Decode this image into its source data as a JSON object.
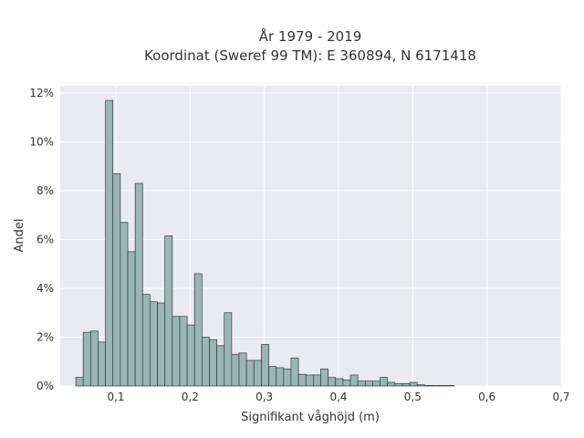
{
  "chart_data": {
    "type": "bar",
    "title": "År 1979 - 2019",
    "subtitle": "Koordinat (Sweref 99 TM): E 360894, N 6171418",
    "xlabel": "Signifikant våghöjd (m)",
    "ylabel": "Andel",
    "xlim": [
      0.025,
      0.7
    ],
    "ylim": [
      0,
      12.3
    ],
    "x_ticks": [
      0.1,
      0.2,
      0.3,
      0.4,
      0.5,
      0.6,
      0.7
    ],
    "x_tick_labels": [
      "0,1",
      "0,2",
      "0,3",
      "0,4",
      "0,5",
      "0,6",
      "0,7"
    ],
    "y_ticks": [
      0,
      2,
      4,
      6,
      8,
      10,
      12
    ],
    "y_tick_labels": [
      "0%",
      "2%",
      "4%",
      "6%",
      "8%",
      "10%",
      "12%"
    ],
    "bin_start": 0.046,
    "bin_width": 0.01,
    "values": [
      0.35,
      2.2,
      2.25,
      1.8,
      11.7,
      8.7,
      6.7,
      5.5,
      8.3,
      3.75,
      3.45,
      3.4,
      6.15,
      2.85,
      2.85,
      2.5,
      4.6,
      2.0,
      1.9,
      1.65,
      3.0,
      1.3,
      1.35,
      1.05,
      1.05,
      1.7,
      0.8,
      0.75,
      0.7,
      1.15,
      0.48,
      0.45,
      0.45,
      0.7,
      0.35,
      0.3,
      0.25,
      0.45,
      0.2,
      0.2,
      0.2,
      0.35,
      0.15,
      0.1,
      0.1,
      0.15,
      0.05,
      0.02,
      0.02,
      0.02,
      0.02
    ],
    "grid": true,
    "colors": {
      "plot_background": "#eaeaf2",
      "bar_fill": "#9ab5b5",
      "bar_edge": "#2f3d3d",
      "grid": "#ffffff",
      "text": "#333333"
    }
  }
}
